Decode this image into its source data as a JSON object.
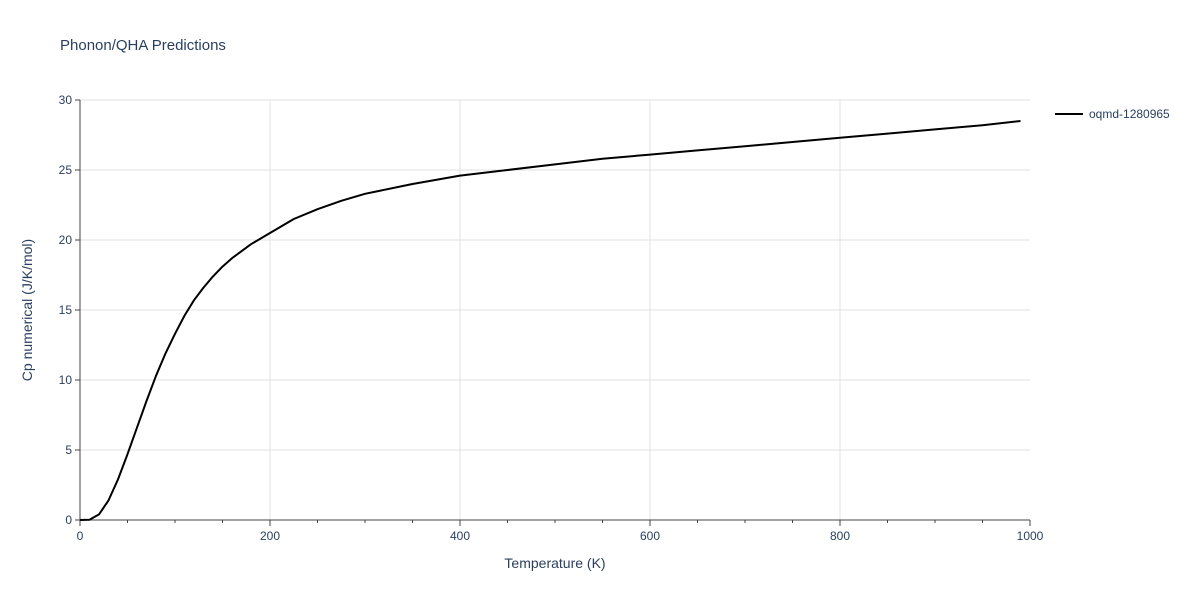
{
  "chart_data": {
    "type": "line",
    "title": "Phonon/QHA Predictions",
    "xlabel": "Temperature (K)",
    "ylabel": "Cp numerical (J/K/mol)",
    "xlim": [
      0,
      1000
    ],
    "ylim": [
      0,
      30
    ],
    "x_ticks": [
      0,
      200,
      400,
      600,
      800,
      1000
    ],
    "y_ticks": [
      0,
      5,
      10,
      15,
      20,
      25,
      30
    ],
    "x_minor_ticks": [
      50,
      100,
      150,
      250,
      300,
      350,
      450,
      500,
      550,
      650,
      700,
      750,
      850,
      900,
      950
    ],
    "grid": true,
    "legend_position": "top-right",
    "series": [
      {
        "name": "oqmd-1280965",
        "color": "#000000",
        "x": [
          0,
          10,
          20,
          30,
          40,
          50,
          60,
          70,
          80,
          90,
          100,
          110,
          120,
          130,
          140,
          150,
          160,
          170,
          180,
          190,
          200,
          225,
          250,
          275,
          300,
          350,
          400,
          450,
          500,
          550,
          600,
          650,
          700,
          750,
          800,
          850,
          900,
          950,
          990
        ],
        "y": [
          0,
          0.02,
          0.4,
          1.4,
          2.9,
          4.7,
          6.6,
          8.5,
          10.3,
          11.9,
          13.3,
          14.6,
          15.7,
          16.6,
          17.4,
          18.1,
          18.7,
          19.2,
          19.7,
          20.1,
          20.5,
          21.5,
          22.2,
          22.8,
          23.3,
          24.0,
          24.6,
          25.0,
          25.4,
          25.8,
          26.1,
          26.4,
          26.7,
          27.0,
          27.3,
          27.6,
          27.9,
          28.2,
          28.5
        ]
      }
    ]
  }
}
